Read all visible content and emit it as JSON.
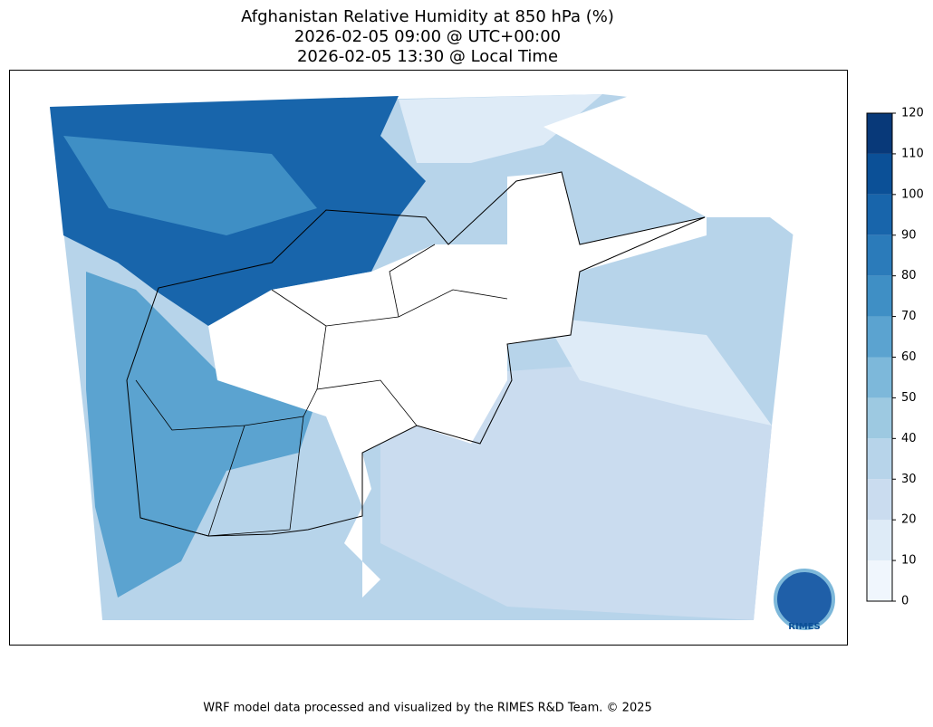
{
  "title": [
    "Afghanistan Relative Humidity at 850 hPa (%)",
    "2026-02-05 09:00 @ UTC+00:00",
    "2026-02-05 13:30 @ Local Time"
  ],
  "colorbar": {
    "ticks": [
      0,
      10,
      20,
      30,
      40,
      50,
      60,
      70,
      80,
      90,
      100,
      110,
      120
    ],
    "colors": [
      "#f0f6fd",
      "#deebf7",
      "#cadcef",
      "#b7d4ea",
      "#9dc9e1",
      "#7db8da",
      "#5ba3d0",
      "#3f8fc5",
      "#2b7bba",
      "#1865ab",
      "#0b5097",
      "#083979"
    ]
  },
  "logo": "RIMES",
  "footer": "WRF model data processed and visualized by the RIMES R&D Team. © 2025"
}
